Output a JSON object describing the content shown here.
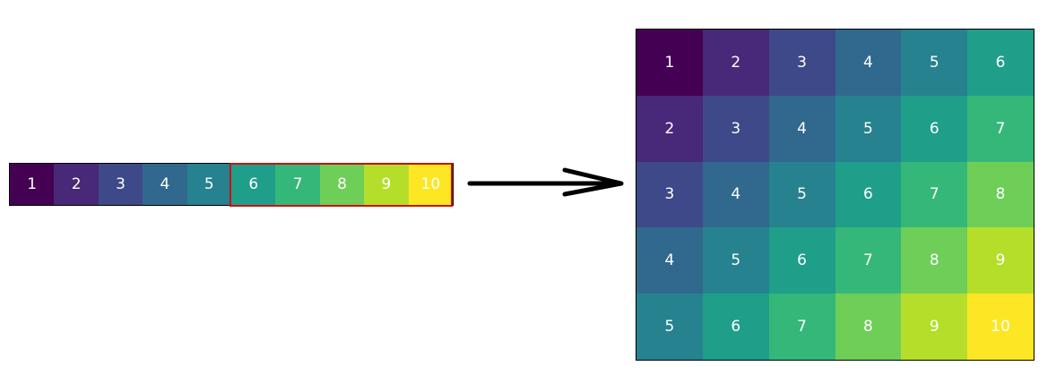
{
  "colors": {
    "highlight": "#cc1111",
    "arrow": "#000000",
    "text": "#ffffff",
    "viridis": {
      "1": "#440154",
      "2": "#482878",
      "3": "#3e4989",
      "4": "#31688e",
      "5": "#26828e",
      "6": "#1f9e89",
      "7": "#35b779",
      "8": "#6ece58",
      "9": "#b5de2b",
      "10": "#fde725"
    }
  },
  "strip": {
    "cells": [
      "1",
      "2",
      "3",
      "4",
      "5",
      "6",
      "7",
      "8",
      "9",
      "10"
    ],
    "highlighted_from": 6
  },
  "grid": {
    "rows": [
      [
        "1",
        "2",
        "3",
        "4",
        "5",
        "6"
      ],
      [
        "2",
        "3",
        "4",
        "5",
        "6",
        "7"
      ],
      [
        "3",
        "4",
        "5",
        "6",
        "7",
        "8"
      ],
      [
        "4",
        "5",
        "6",
        "7",
        "8",
        "9"
      ],
      [
        "5",
        "6",
        "7",
        "8",
        "9",
        "10"
      ]
    ]
  }
}
